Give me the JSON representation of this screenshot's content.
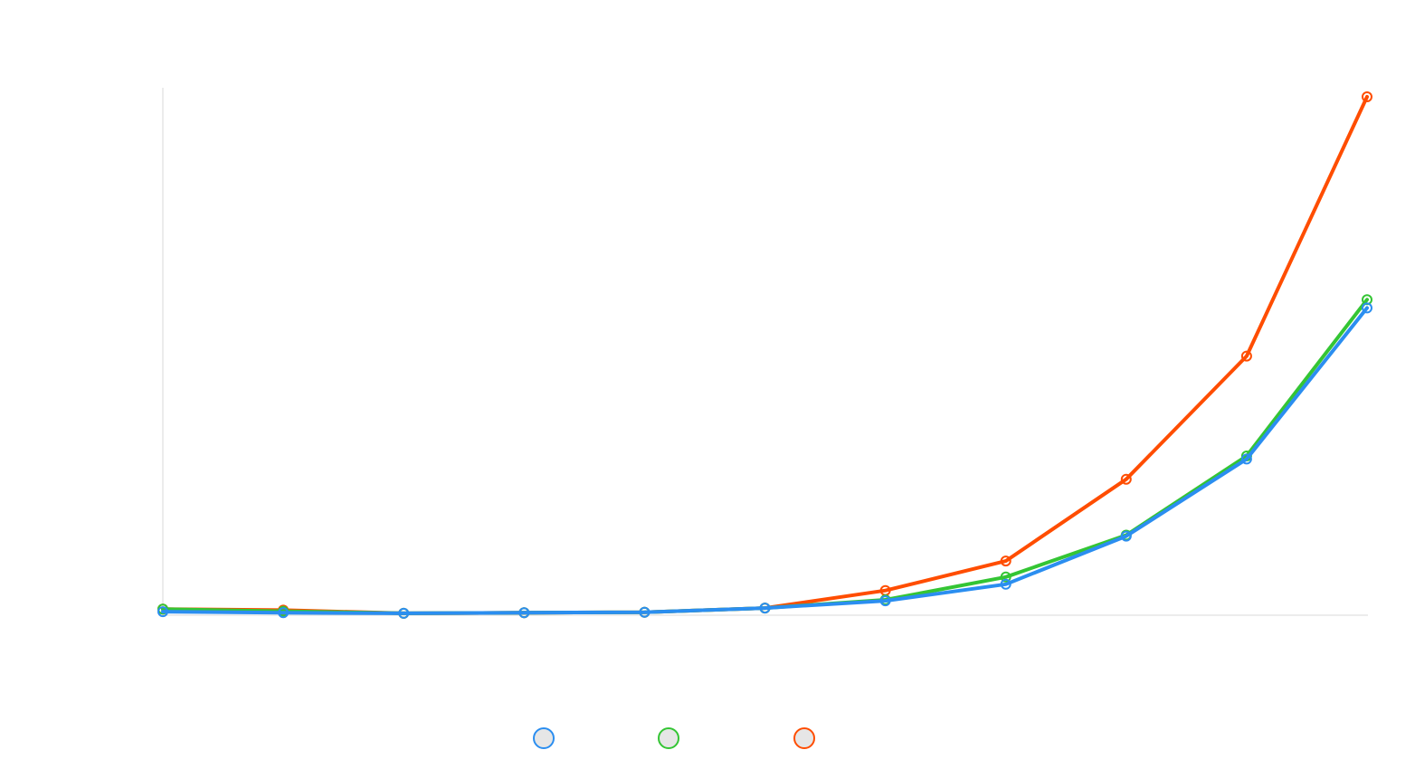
{
  "chart_data": {
    "type": "line",
    "title": "",
    "xlabel": "",
    "ylabel": "",
    "x": [
      0,
      1,
      2,
      3,
      4,
      5,
      6,
      7,
      8,
      9,
      10
    ],
    "ylim": [
      0,
      100
    ],
    "grid": false,
    "legend_position": "bottom-center",
    "series": [
      {
        "color": "#2b8ef0",
        "values": [
          0.5,
          0.3,
          0.2,
          0.3,
          0.4,
          1.2,
          2.6,
          5.8,
          15.1,
          30.0,
          59.2
        ]
      },
      {
        "color": "#34c534",
        "values": [
          1.0,
          0.6,
          0.2,
          0.3,
          0.4,
          1.2,
          2.8,
          7.2,
          15.3,
          30.6,
          60.8
        ]
      },
      {
        "color": "#ff4d00",
        "values": [
          1.0,
          0.8,
          0.2,
          0.3,
          0.4,
          1.2,
          4.6,
          10.3,
          26.1,
          49.9,
          100.0
        ]
      }
    ]
  }
}
